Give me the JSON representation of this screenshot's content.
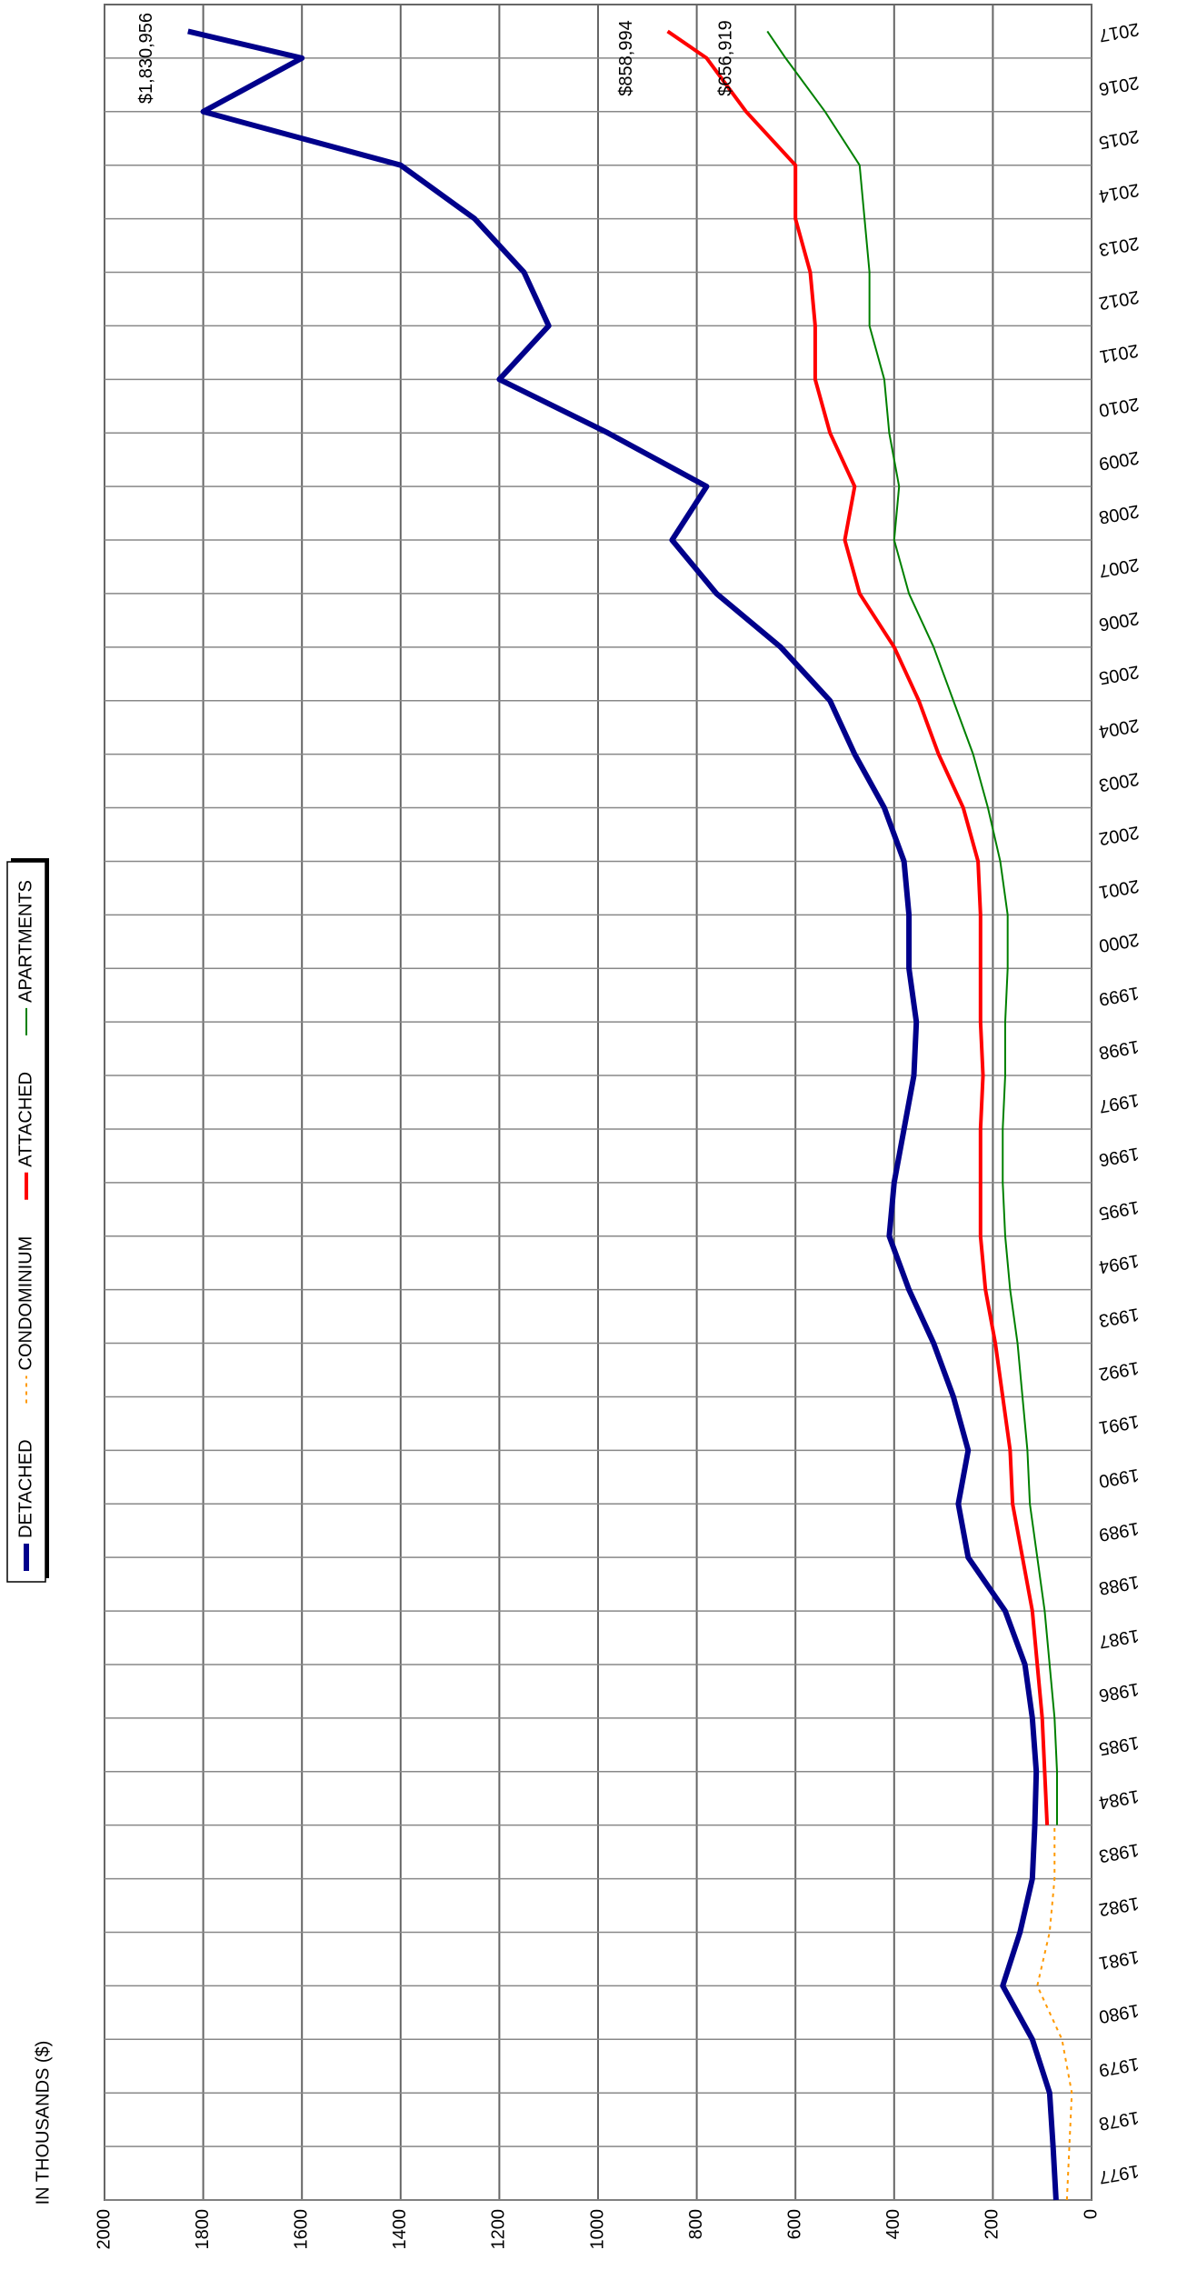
{
  "chart_data": {
    "type": "line",
    "axis_label": "IN THOUSANDS ($)",
    "x": [
      1977,
      1978,
      1979,
      1980,
      1981,
      1982,
      1983,
      1984,
      1985,
      1986,
      1987,
      1988,
      1989,
      1990,
      1991,
      1992,
      1993,
      1994,
      1995,
      1996,
      1997,
      1998,
      1999,
      2000,
      2001,
      2002,
      2003,
      2004,
      2005,
      2006,
      2007,
      2008,
      2009,
      2010,
      2011,
      2012,
      2013,
      2014,
      2015,
      2016,
      2017,
      2017.5
    ],
    "xlim": [
      1977,
      2018
    ],
    "xticks": [
      1977,
      1978,
      1979,
      1980,
      1981,
      1982,
      1983,
      1984,
      1985,
      1986,
      1987,
      1988,
      1989,
      1990,
      1991,
      1992,
      1993,
      1994,
      1995,
      1996,
      1997,
      1998,
      1999,
      2000,
      2001,
      2002,
      2003,
      2004,
      2005,
      2006,
      2007,
      2008,
      2009,
      2010,
      2011,
      2012,
      2013,
      2014,
      2015,
      2016,
      2017
    ],
    "ylim": [
      0,
      2000
    ],
    "yticks": [
      0,
      200,
      400,
      600,
      800,
      1000,
      1200,
      1400,
      1600,
      1800,
      2000
    ],
    "grid": true,
    "series": [
      {
        "name": "DETACHED",
        "color": "#00008b",
        "width": 6,
        "dash": "none",
        "values": [
          72,
          78,
          85,
          120,
          180,
          145,
          120,
          115,
          112,
          120,
          135,
          175,
          250,
          270,
          250,
          280,
          320,
          370,
          410,
          400,
          380,
          360,
          355,
          370,
          370,
          380,
          420,
          480,
          530,
          630,
          760,
          850,
          780,
          980,
          1200,
          1100,
          1150,
          1250,
          1400,
          1800,
          1600,
          1830.956
        ],
        "end_label": "$1,830,956"
      },
      {
        "name": "CONDOMINIUM",
        "color": "#ff9900",
        "width": 2,
        "dash": "4 5",
        "values": [
          50,
          45,
          40,
          60,
          110,
          85,
          75,
          75,
          null,
          null,
          null,
          null,
          null,
          null,
          null,
          null,
          null,
          null,
          null,
          null,
          null,
          null,
          null,
          null,
          null,
          null,
          null,
          null,
          null,
          null,
          null,
          null,
          null,
          null,
          null,
          null,
          null,
          null,
          null,
          null,
          null,
          null
        ]
      },
      {
        "name": "ATTACHED",
        "color": "#ff0000",
        "width": 4,
        "dash": "none",
        "values": [
          null,
          null,
          null,
          null,
          null,
          null,
          null,
          90,
          95,
          100,
          110,
          120,
          140,
          160,
          165,
          180,
          195,
          215,
          225,
          225,
          225,
          220,
          225,
          225,
          225,
          230,
          260,
          310,
          350,
          400,
          470,
          500,
          480,
          530,
          560,
          560,
          570,
          600,
          600,
          700,
          780,
          858.994
        ],
        "end_label": "$858,994"
      },
      {
        "name": "APARTMENTS",
        "color": "#008000",
        "width": 2,
        "dash": "none",
        "values": [
          null,
          null,
          null,
          null,
          null,
          null,
          null,
          70,
          70,
          75,
          85,
          95,
          110,
          125,
          130,
          140,
          150,
          165,
          175,
          180,
          180,
          175,
          175,
          170,
          170,
          185,
          210,
          240,
          280,
          320,
          370,
          400,
          390,
          410,
          420,
          450,
          450,
          460,
          470,
          540,
          620,
          656.919
        ],
        "end_label": "$656,919"
      }
    ]
  }
}
